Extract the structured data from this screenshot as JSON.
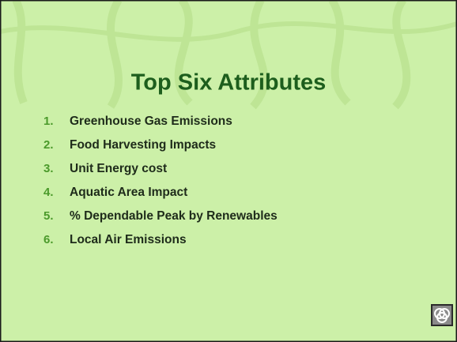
{
  "slide": {
    "title": "Top Six Attributes",
    "items": [
      {
        "number": "1.",
        "text": "Greenhouse Gas Emissions"
      },
      {
        "number": "2.",
        "text": "Food Harvesting Impacts"
      },
      {
        "number": "3.",
        "text": "Unit Energy cost"
      },
      {
        "number": "4.",
        "text": "Aquatic Area Impact"
      },
      {
        "number": "5.",
        "text": "% Dependable Peak by Renewables"
      },
      {
        "number": "6.",
        "text": "Local Air Emissions"
      }
    ]
  }
}
